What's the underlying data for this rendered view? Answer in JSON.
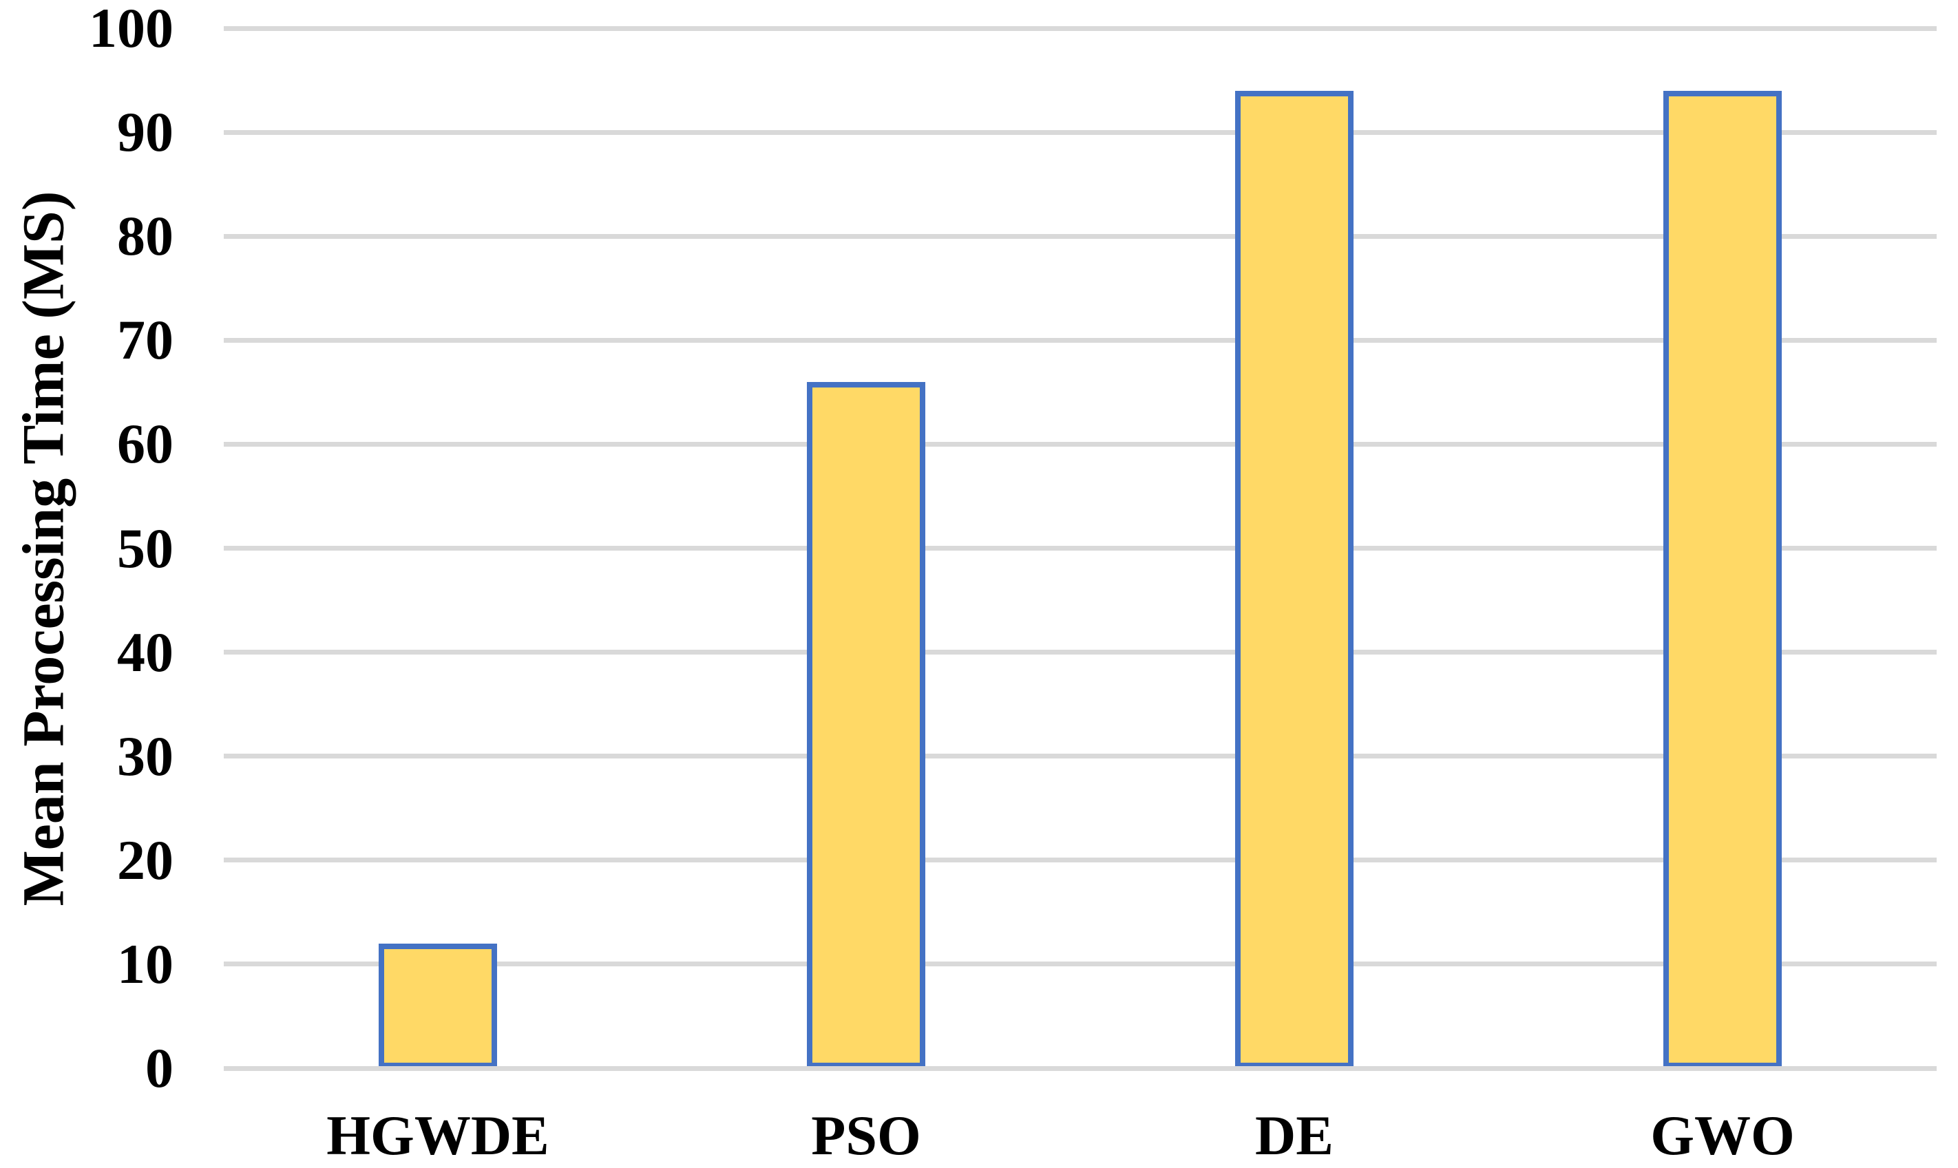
{
  "chart_data": {
    "type": "bar",
    "title": "",
    "xlabel": "",
    "ylabel": "Mean Processing Time (MS)",
    "categories": [
      "HGWDE",
      "PSO",
      "DE",
      "GWO"
    ],
    "values": [
      12,
      66,
      94,
      94
    ],
    "series": [
      {
        "name": "Mean Processing Time",
        "values": [
          12,
          66,
          94,
          94
        ]
      }
    ],
    "ylim": [
      0,
      100
    ],
    "ytick_step": 10,
    "yticks": [
      0,
      10,
      20,
      30,
      40,
      50,
      60,
      70,
      80,
      90,
      100
    ],
    "grid": true,
    "gridline_orientation": "horizontal",
    "legend": false,
    "colors": {
      "bar_fill": "#FFD966",
      "bar_border": "#4472C4",
      "gridline": "#D9D9D9",
      "axis_line": "#D9D9D9",
      "text": "#000000",
      "background": "#FFFFFF"
    }
  }
}
